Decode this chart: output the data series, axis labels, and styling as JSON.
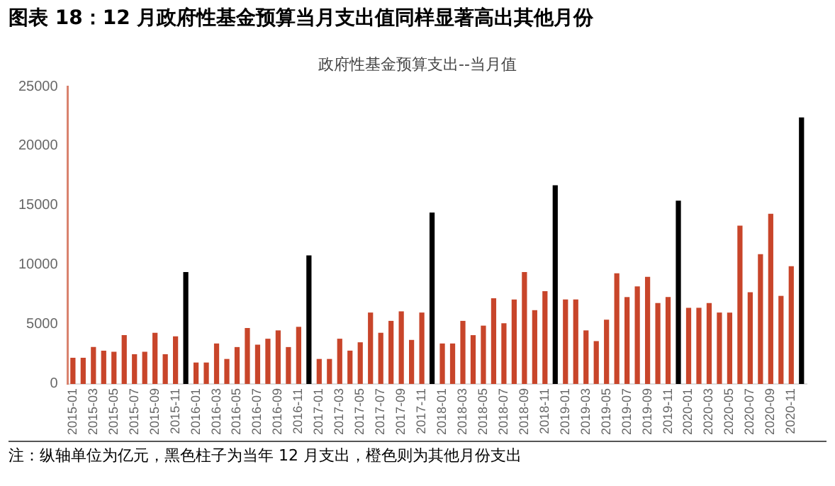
{
  "chart_data": {
    "type": "bar",
    "title": "图表 18：12 月政府性基金预算当月支出值同样显著高出其他月份",
    "subtitle": "政府性基金预算支出--当月值",
    "annotations": [
      "注：纵轴单位为亿元，黑色柱子为当年 12 月支出，橙色则为其他月份支出"
    ],
    "categories": [
      "2015-01",
      null,
      "2015-03",
      null,
      "2015-05",
      null,
      "2015-07",
      null,
      "2015-09",
      null,
      "2015-11",
      null,
      "2016-01",
      null,
      "2016-03",
      null,
      "2016-05",
      null,
      "2016-07",
      null,
      "2016-09",
      null,
      "2016-11",
      null,
      "2017-01",
      null,
      "2017-03",
      null,
      "2017-05",
      null,
      "2017-07",
      null,
      "2017-09",
      null,
      "2017-11",
      null,
      "2018-01",
      null,
      "2018-03",
      null,
      "2018-05",
      null,
      "2018-07",
      null,
      "2018-09",
      null,
      "2018-11",
      null,
      "2019-01",
      null,
      "2019-03",
      null,
      "2019-05",
      null,
      "2019-07",
      null,
      "2019-09",
      null,
      "2019-11",
      null,
      "2020-01",
      null,
      "2020-03",
      null,
      "2020-05",
      null,
      "2020-07",
      null,
      "2020-09",
      null,
      "2020-11",
      null
    ],
    "values": [
      2200,
      2200,
      3100,
      2800,
      2700,
      4100,
      2500,
      2700,
      4300,
      2500,
      4000,
      9400,
      1800,
      1800,
      3400,
      2100,
      3100,
      4700,
      3300,
      3800,
      4500,
      3100,
      4800,
      10800,
      2100,
      2100,
      3800,
      2800,
      3500,
      6000,
      4300,
      5300,
      6100,
      3700,
      6000,
      14400,
      3400,
      3400,
      5300,
      4100,
      4900,
      7200,
      5100,
      7100,
      9400,
      6200,
      7800,
      16700,
      7100,
      7100,
      4500,
      3600,
      5400,
      9300,
      7300,
      8200,
      9000,
      6800,
      7300,
      15400,
      6400,
      6400,
      6800,
      6000,
      6000,
      13300,
      7700,
      10900,
      14300,
      7400,
      9900,
      22400
    ],
    "colors": [
      "#c8452a",
      "#c8452a",
      "#c8452a",
      "#c8452a",
      "#c8452a",
      "#c8452a",
      "#c8452a",
      "#c8452a",
      "#c8452a",
      "#c8452a",
      "#c8452a",
      "#000000",
      "#c8452a",
      "#c8452a",
      "#c8452a",
      "#c8452a",
      "#c8452a",
      "#c8452a",
      "#c8452a",
      "#c8452a",
      "#c8452a",
      "#c8452a",
      "#c8452a",
      "#000000",
      "#c8452a",
      "#c8452a",
      "#c8452a",
      "#c8452a",
      "#c8452a",
      "#c8452a",
      "#c8452a",
      "#c8452a",
      "#c8452a",
      "#c8452a",
      "#c8452a",
      "#000000",
      "#c8452a",
      "#c8452a",
      "#c8452a",
      "#c8452a",
      "#c8452a",
      "#c8452a",
      "#c8452a",
      "#c8452a",
      "#c8452a",
      "#c8452a",
      "#c8452a",
      "#000000",
      "#c8452a",
      "#c8452a",
      "#c8452a",
      "#c8452a",
      "#c8452a",
      "#c8452a",
      "#c8452a",
      "#c8452a",
      "#c8452a",
      "#c8452a",
      "#c8452a",
      "#000000",
      "#c8452a",
      "#c8452a",
      "#c8452a",
      "#c8452a",
      "#c8452a",
      "#c8452a",
      "#c8452a",
      "#c8452a",
      "#c8452a",
      "#c8452a",
      "#c8452a",
      "#000000"
    ],
    "ylim": [
      0,
      25000
    ],
    "yticks": [
      0,
      5000,
      10000,
      15000,
      20000,
      25000
    ],
    "grid": false,
    "legend": false
  }
}
